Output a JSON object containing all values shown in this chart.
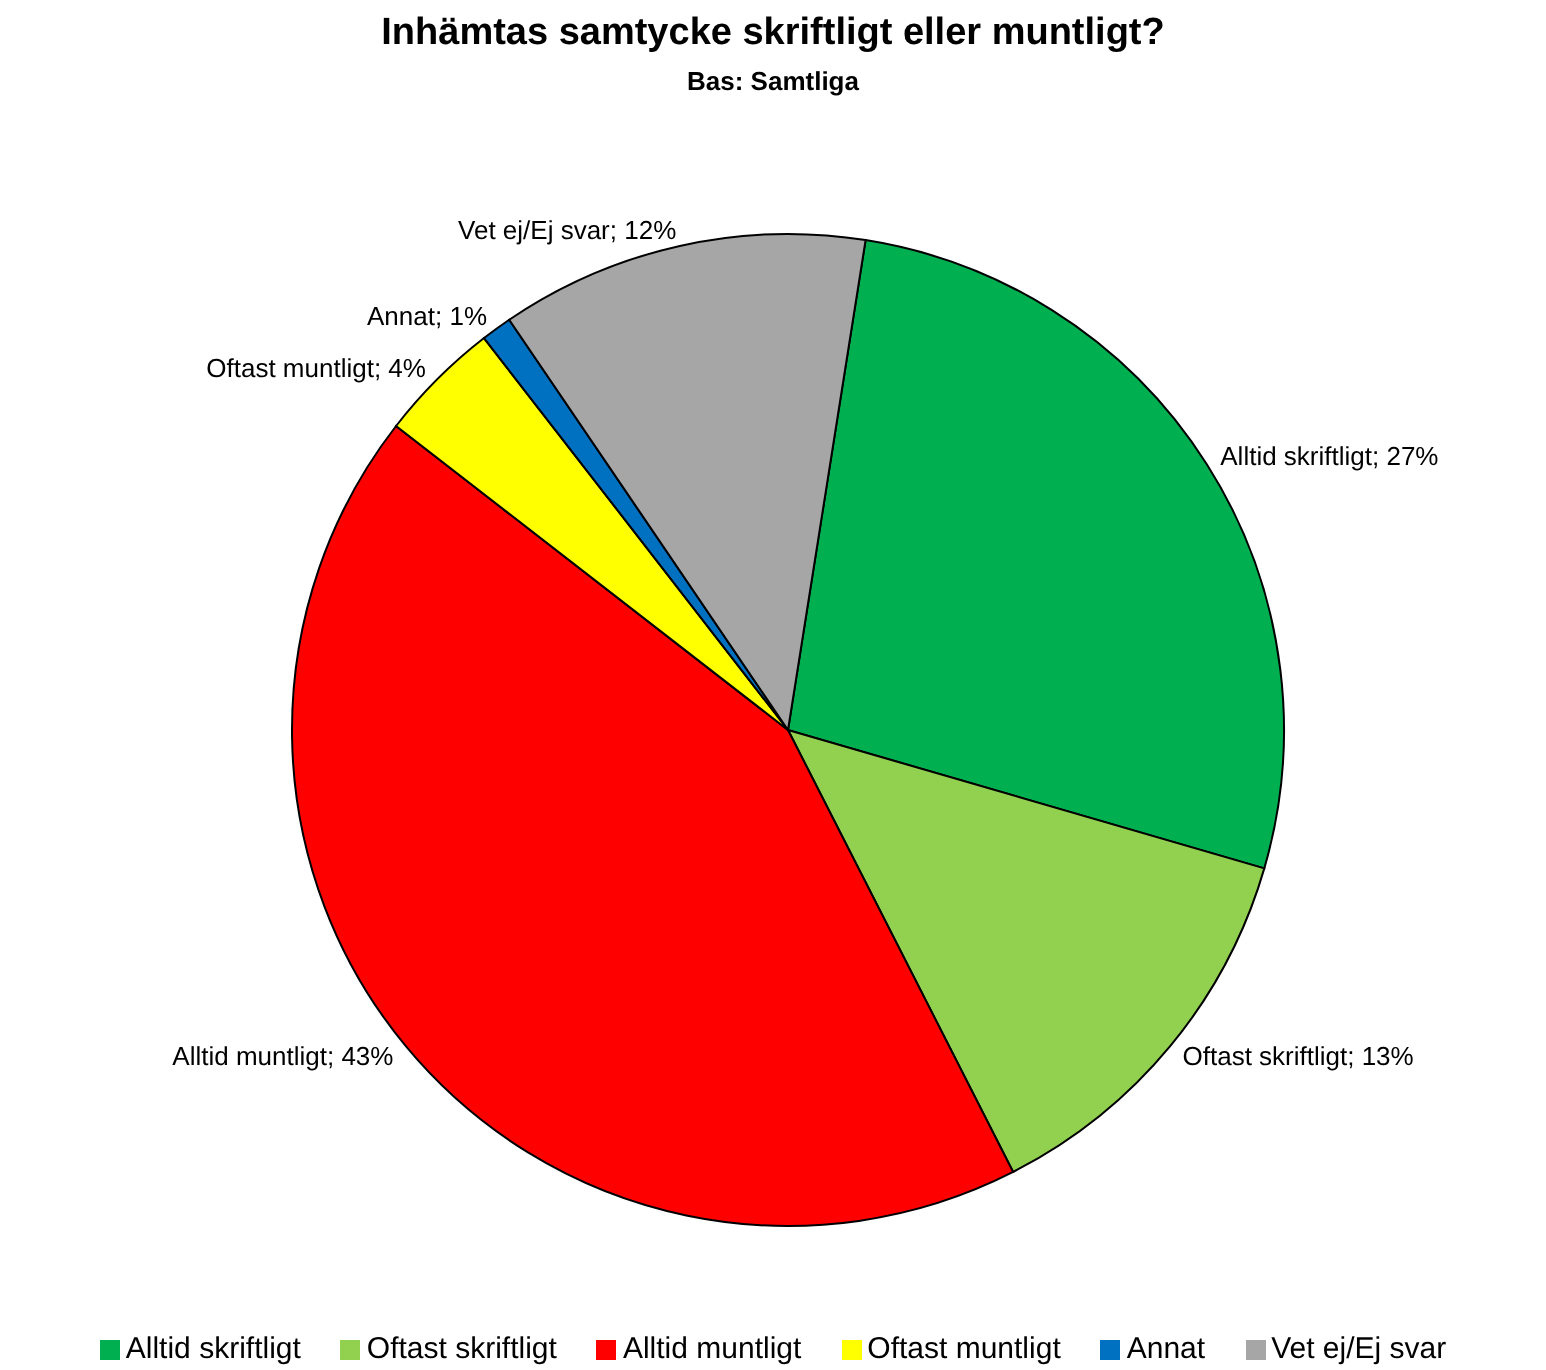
{
  "chart_data": {
    "type": "pie",
    "title": "Inhämtas samtycke skriftligt eller muntligt?",
    "subtitle": "Bas: Samtliga",
    "categories": [
      "Alltid skriftligt",
      "Oftast skriftligt",
      "Alltid muntligt",
      "Oftast muntligt",
      "Annat",
      "Vet ej/Ej svar"
    ],
    "values": [
      27,
      13,
      43,
      4,
      1,
      12
    ],
    "value_labels": [
      "Alltid skriftligt; 27%",
      "Oftast skriftligt; 13%",
      "Alltid muntligt; 43%",
      "Oftast muntligt; 4%",
      "Annat; 1%",
      "Vet ej/Ej svar; 12%"
    ],
    "colors": [
      "#00b050",
      "#92d050",
      "#ff0000",
      "#ffff00",
      "#0070c0",
      "#a6a6a6"
    ],
    "legend": "bottom"
  }
}
